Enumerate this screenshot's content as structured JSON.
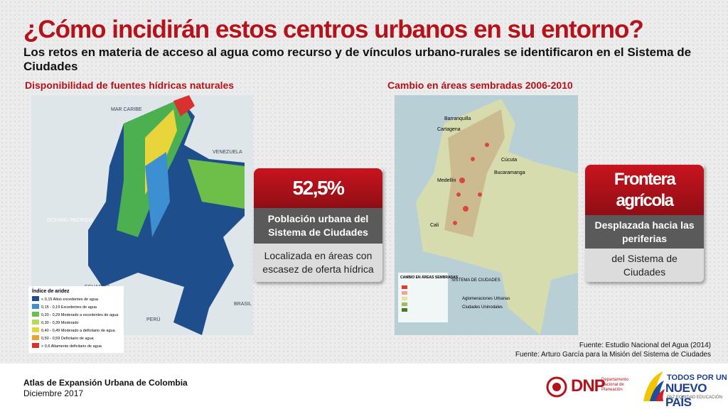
{
  "header": {
    "title": "¿Cómo incidirán estos centros urbanos en su entorno?",
    "subtitle": "Los retos en materia de acceso al agua como recurso y de vínculos urbano-rurales se identificaron en el Sistema de Ciudades"
  },
  "left_map": {
    "caption": "Disponibilidad de fuentes hídricas naturales",
    "labels": [
      "MAR CARIBE",
      "VENEZUELA",
      "OCEANO PACIFICO",
      "ECUADOR",
      "PERÚ",
      "BRASIL"
    ],
    "legend_title": "Índice de aridez",
    "legend": [
      "< 0,15 Altos excedentes de agua",
      "0,15 - 0,19 Excedentes de agua",
      "0,20 - 0,29 Moderado a excedentes de agua",
      "0,30 - 0,39 Moderado",
      "0,40 - 0,49 Moderado a deficitario de agua",
      "0,50 - 0,59 Deficitario de agua",
      "> 0,6 Altamente deficitario de agua"
    ]
  },
  "card_left": {
    "value": "52,5%",
    "heading": "Población urbana del Sistema de Ciudades",
    "text": "Localizada en áreas con escasez de oferta hídrica"
  },
  "right_map": {
    "caption": "Cambio en áreas sembradas 2006-2010",
    "cities": [
      "Barranquilla",
      "Cartagena",
      "Cúcuta",
      "Bucaramanga",
      "Medellín",
      "Cali"
    ],
    "legend_title": "CAMBIO EN ÁREAS SEMBRADAS",
    "legend_system": "SISTEMA DE CIUDADES",
    "legend_items": [
      "Aglomeraciones Urbanas",
      "Ciudades Uninodales"
    ]
  },
  "card_right": {
    "value": "Frontera agrícola",
    "heading": "Desplazada hacia las periferias",
    "text": "del Sistema de Ciudades"
  },
  "sources": [
    "Fuente: Estudio Nacional del Agua (2014)",
    "Fuente: Arturo García para la Misión del Sistema de Ciudades"
  ],
  "footer": {
    "title": "Atlas de Expansión Urbana de Colombia",
    "date": "Diciembre 2017",
    "dnp": "DNP",
    "dnp_name": "Departamento Nacional de Planeación",
    "slogan_top": "TODOS POR UN",
    "slogan_main": "NUEVO PAÍS",
    "slogan_sub": "PAZ  EQUIDAD  EDUCACIÓN"
  }
}
